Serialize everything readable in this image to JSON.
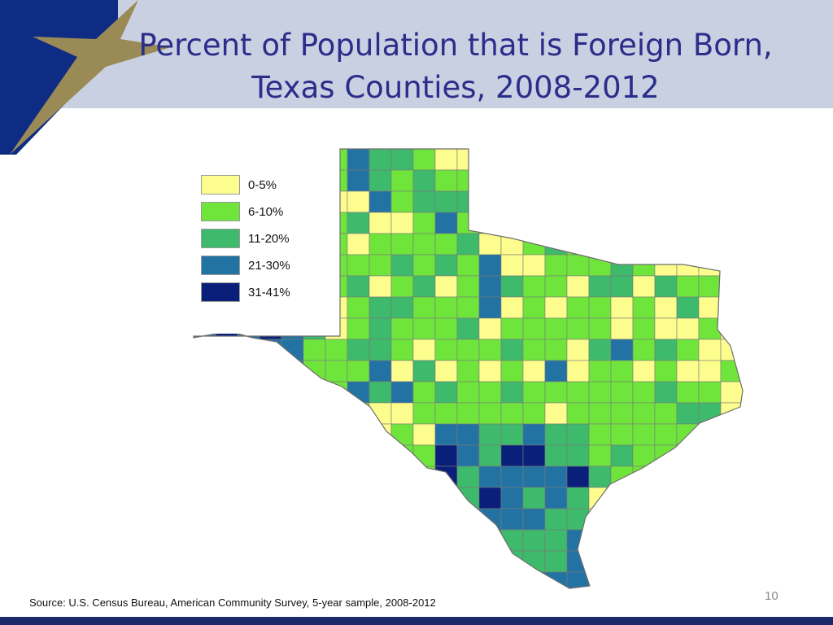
{
  "title": "Percent of Population that is Foreign Born, Texas Counties, 2008-2012",
  "colors": {
    "header_band": "#c9d0e2",
    "corner_navy": "#0f2c84",
    "star_gold": "#9a8a55",
    "title_text": "#2a2d8a",
    "footer_bar": "#1b2a6b"
  },
  "legend": {
    "items": [
      {
        "label": "0-5%",
        "color": "#fdfd8e"
      },
      {
        "label": "6-10%",
        "color": "#6fe53c"
      },
      {
        "label": "11-20%",
        "color": "#3dba6b"
      },
      {
        "label": "21-30%",
        "color": "#2273a3"
      },
      {
        "label": "31-41%",
        "color": "#0a1f7a"
      }
    ]
  },
  "source": "Source: U.S. Census Bureau, American Community Survey, 5-year sample, 2008-2012",
  "page_number": "10"
}
